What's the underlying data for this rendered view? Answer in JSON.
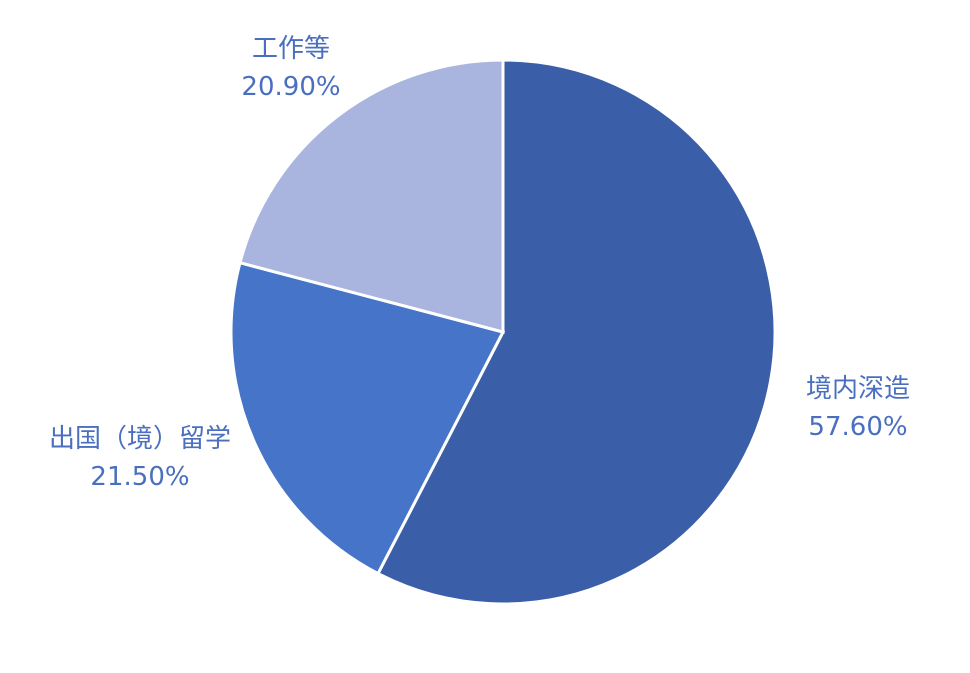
{
  "chart_data": {
    "type": "pie",
    "categories": [
      "境内深造",
      "出国（境）留学",
      "工作等"
    ],
    "values": [
      57.6,
      21.5,
      20.9
    ],
    "value_labels": [
      "57.60%",
      "21.50%",
      "20.90%"
    ],
    "colors": [
      "#3b5ea8",
      "#4674c8",
      "#a9b5de"
    ]
  }
}
